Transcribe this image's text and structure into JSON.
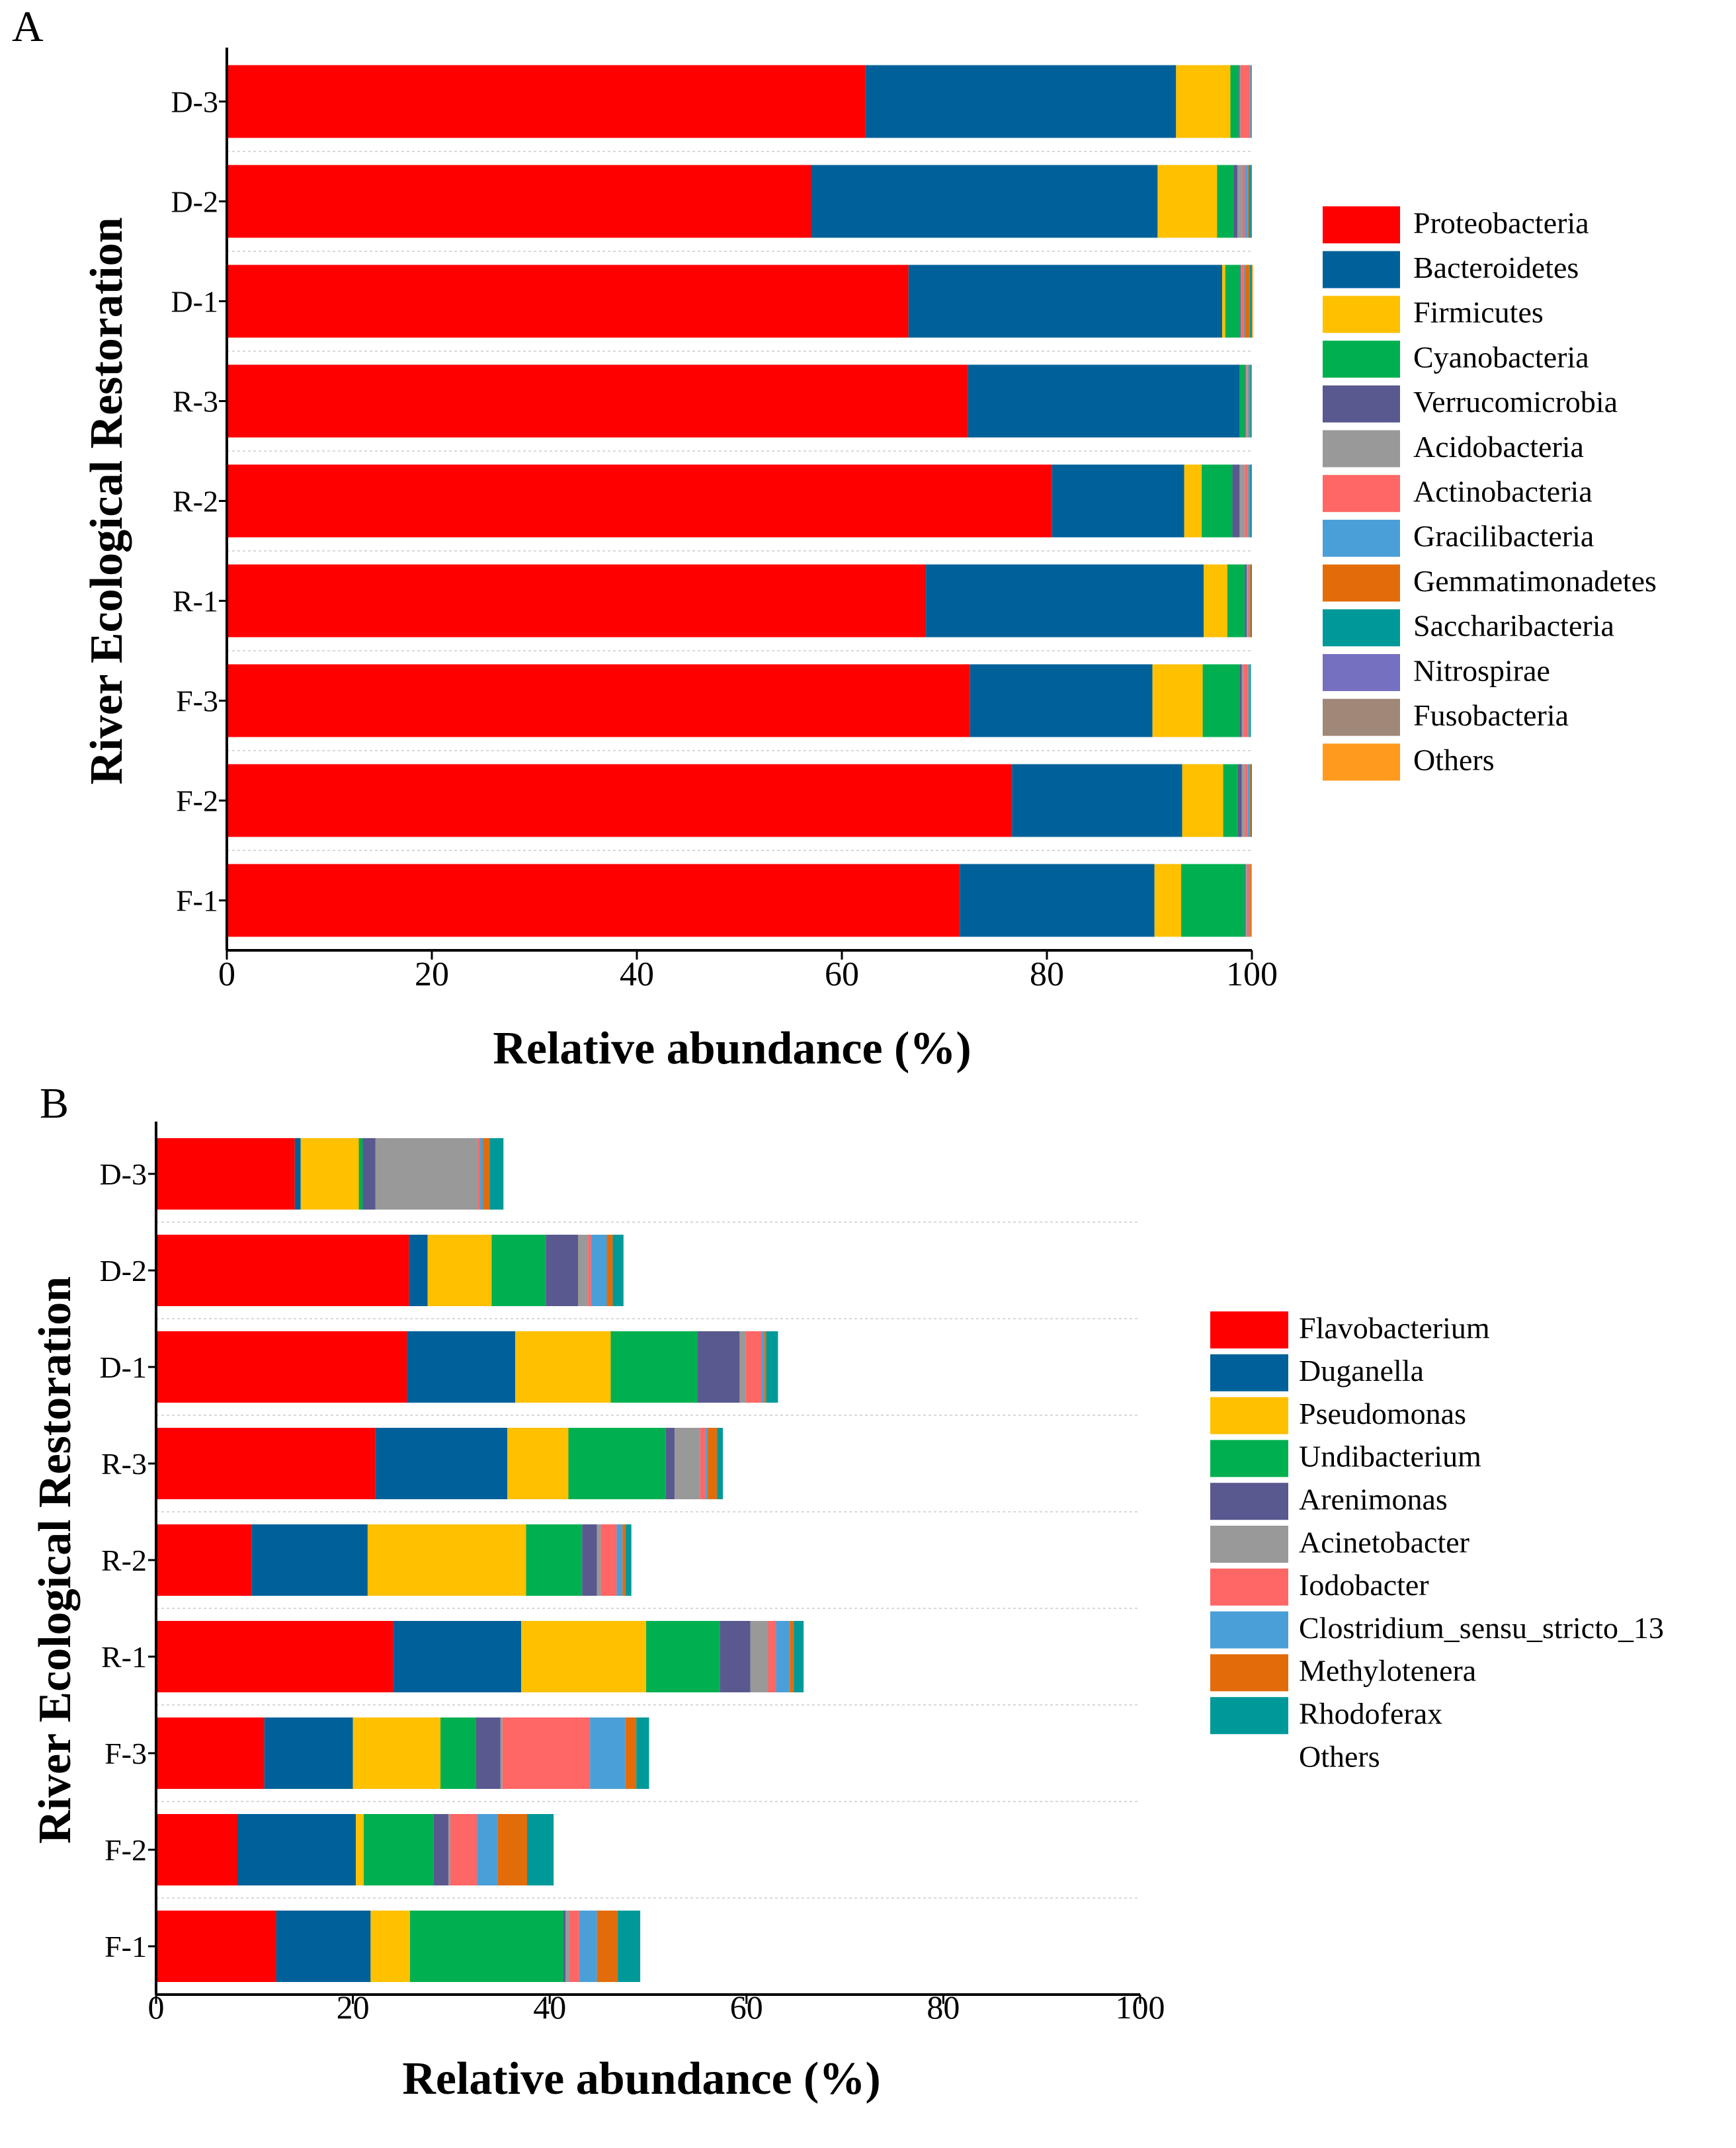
{
  "chart_data": [
    {
      "panel_label": "A",
      "type": "bar",
      "orientation": "horizontal",
      "stacked": true,
      "xlabel": "Relative abundance (%)",
      "ylabel": "River Ecological Restoration",
      "xlim": [
        0,
        100
      ],
      "xticks": [
        "0",
        "20",
        "40",
        "60",
        "80",
        "100"
      ],
      "categories": [
        "D-3",
        "D-2",
        "D-1",
        "R-3",
        "R-2",
        "R-1",
        "F-3",
        "F-2",
        "F-1"
      ],
      "legend_position": "right",
      "series": [
        {
          "name": "Proteobacteria",
          "color": "#ff0000",
          "values": [
            62.3,
            57.0,
            66.5,
            72.3,
            80.5,
            68.2,
            72.5,
            76.6,
            71.5
          ]
        },
        {
          "name": "Bacteroidetes",
          "color": "#00619a",
          "values": [
            30.3,
            33.8,
            30.6,
            26.5,
            12.9,
            27.1,
            17.8,
            16.6,
            19.0
          ]
        },
        {
          "name": "Firmicutes",
          "color": "#ffc000",
          "values": [
            5.3,
            5.8,
            0.3,
            0.0,
            1.7,
            2.3,
            4.9,
            4.0,
            2.6
          ]
        },
        {
          "name": "Cyanobacteria",
          "color": "#00b050",
          "values": [
            0.8,
            1.6,
            1.4,
            0.5,
            3.0,
            1.7,
            3.6,
            1.4,
            6.2
          ]
        },
        {
          "name": "Verrucomicrobia",
          "color": "#595990",
          "values": [
            0.1,
            0.4,
            0.1,
            0.1,
            0.7,
            0.2,
            0.2,
            0.4,
            0.1
          ]
        },
        {
          "name": "Acidobacteria",
          "color": "#999999",
          "values": [
            0.1,
            0.5,
            0.1,
            0.1,
            0.5,
            0.1,
            0.2,
            0.3,
            0.1
          ]
        },
        {
          "name": "Actinobacteria",
          "color": "#ff6666",
          "values": [
            0.9,
            0.2,
            0.2,
            0.1,
            0.3,
            0.1,
            0.4,
            0.3,
            0.2
          ]
        },
        {
          "name": "Gracilibacteria",
          "color": "#4a9fd8",
          "values": [
            0.1,
            0.3,
            0.1,
            0.1,
            0.1,
            0.1,
            0.1,
            0.2,
            0.1
          ]
        },
        {
          "name": "Gemmatimonadetes",
          "color": "#e36c0a",
          "values": [
            0.1,
            0.1,
            0.5,
            0.1,
            0.1,
            0.1,
            0.1,
            0.1,
            0.1
          ]
        },
        {
          "name": "Saccharibacteria",
          "color": "#00999a",
          "values": [
            0.0,
            0.2,
            0.2,
            0.1,
            0.1,
            0.1,
            0.1,
            0.1,
            0.0
          ]
        },
        {
          "name": "Nitrospirae",
          "color": "#7570c0",
          "values": [
            0.0,
            0.1,
            0.0,
            0.0,
            0.1,
            0.0,
            0.0,
            0.0,
            0.0
          ]
        },
        {
          "name": "Fusobacteria",
          "color": "#a08878",
          "values": [
            0.0,
            0.0,
            0.0,
            0.1,
            0.0,
            0.0,
            0.0,
            0.0,
            0.0
          ]
        },
        {
          "name": "Others",
          "color": "#ff9a1f",
          "values": [
            0.0,
            0.0,
            0.1,
            0.0,
            0.0,
            0.0,
            0.0,
            0.0,
            0.1
          ]
        }
      ]
    },
    {
      "panel_label": "B",
      "type": "bar",
      "orientation": "horizontal",
      "stacked": true,
      "xlabel": "Relative abundance (%)",
      "ylabel": "River Ecological Restoration",
      "xlim": [
        0,
        100
      ],
      "xticks": [
        "0",
        "20",
        "40",
        "60",
        "80",
        "100"
      ],
      "categories": [
        "D-3",
        "D-2",
        "D-1",
        "R-3",
        "R-2",
        "R-1",
        "F-3",
        "F-2",
        "F-1"
      ],
      "legend_position": "right",
      "series": [
        {
          "name": "Flavobacterium",
          "color": "#ff0000",
          "values": [
            14.1,
            25.7,
            25.5,
            22.3,
            9.7,
            24.1,
            11.0,
            8.3,
            12.2
          ]
        },
        {
          "name": "Duganella",
          "color": "#00619a",
          "values": [
            0.6,
            1.9,
            11.0,
            13.4,
            11.8,
            13.0,
            9.0,
            12.0,
            9.6
          ]
        },
        {
          "name": "Pseudomonas",
          "color": "#ffc000",
          "values": [
            5.9,
            6.5,
            9.7,
            6.2,
            16.1,
            12.7,
            8.9,
            0.8,
            4.0
          ]
        },
        {
          "name": "Undibacterium",
          "color": "#00b050",
          "values": [
            0.4,
            5.5,
            8.8,
            9.9,
            5.7,
            7.5,
            3.6,
            7.1,
            15.6
          ]
        },
        {
          "name": "Arenimonas",
          "color": "#595990",
          "values": [
            1.3,
            3.3,
            4.3,
            0.9,
            1.5,
            3.1,
            2.5,
            1.5,
            0.2
          ]
        },
        {
          "name": "Acinetobacter",
          "color": "#999999",
          "values": [
            10.4,
            1.0,
            0.6,
            2.6,
            0.4,
            1.8,
            0.2,
            0.2,
            0.4
          ]
        },
        {
          "name": "Iodobacter",
          "color": "#ff6666",
          "values": [
            0.2,
            0.3,
            1.6,
            0.5,
            1.6,
            0.8,
            8.9,
            2.7,
            1.0
          ]
        },
        {
          "name": "Clostridium_sensu_stricto_13",
          "color": "#4a9fd8",
          "values": [
            0.3,
            1.6,
            0.3,
            0.2,
            0.6,
            1.4,
            3.6,
            2.1,
            1.8
          ]
        },
        {
          "name": "Methylotenera",
          "color": "#e36c0a",
          "values": [
            0.7,
            0.6,
            0.2,
            1.0,
            0.3,
            0.4,
            1.1,
            3.0,
            2.1
          ]
        },
        {
          "name": "Rhodoferax",
          "color": "#00999a",
          "values": [
            1.4,
            1.1,
            1.2,
            0.6,
            0.6,
            1.0,
            1.3,
            2.7,
            2.3
          ]
        },
        {
          "name": "Others",
          "color": "#ffffff",
          "values": [
            0,
            0,
            0,
            0,
            0,
            0,
            0,
            0,
            0
          ]
        }
      ]
    }
  ]
}
